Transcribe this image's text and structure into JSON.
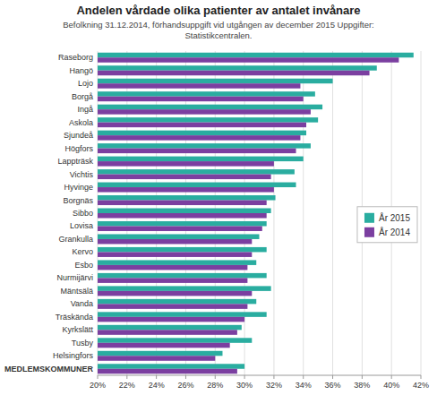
{
  "chart_data": {
    "type": "bar",
    "orientation": "horizontal",
    "title": "Andelen vårdade olika patienter av antalet invånare",
    "subtitle": "Befolkning 31.12.2014, förhandsuppgift vid utgången av december 2015 Uppgifter:\nStatistikcentralen.",
    "categories": [
      "Raseborg",
      "Hangö",
      "Lojo",
      "Borgå",
      "Ingå",
      "Askola",
      "Sjundeå",
      "Högfors",
      "Lappträsk",
      "Vichtis",
      "Hyvinge",
      "Borgnäs",
      "Sibbo",
      "Lovisa",
      "Grankulla",
      "Kervo",
      "Esbo",
      "Nurmijärvi",
      "Mäntsälä",
      "Vanda",
      "Träskända",
      "Kyrkslätt",
      "Tusby",
      "Helsingfors",
      "MEDLEMSKOMMUNER"
    ],
    "series": [
      {
        "name": "År 2015",
        "color": "#2AADA0",
        "values": [
          41.5,
          39.0,
          36.0,
          34.8,
          35.3,
          35.0,
          34.2,
          34.5,
          34.0,
          33.4,
          33.5,
          32.1,
          31.8,
          31.5,
          31.0,
          31.5,
          30.8,
          31.5,
          31.8,
          30.8,
          31.5,
          29.8,
          30.5,
          28.5,
          30.0
        ]
      },
      {
        "name": "År 2014",
        "color": "#7B3FA0",
        "values": [
          40.5,
          38.5,
          33.8,
          34.0,
          34.5,
          34.2,
          33.8,
          33.5,
          32.0,
          31.8,
          32.0,
          31.5,
          31.5,
          31.2,
          30.5,
          30.5,
          30.2,
          30.2,
          30.5,
          30.2,
          30.0,
          29.5,
          29.0,
          28.0,
          29.5
        ]
      }
    ],
    "xlim": [
      20,
      42
    ],
    "xticks": [
      {
        "value": 20,
        "label": "20%"
      },
      {
        "value": 22,
        "label": "22%"
      },
      {
        "value": 24,
        "label": "24%"
      },
      {
        "value": 26,
        "label": "26%"
      },
      {
        "value": 28,
        "label": "28%"
      },
      {
        "value": 30,
        "label": "30%"
      },
      {
        "value": 32,
        "label": "32%"
      },
      {
        "value": 34,
        "label": "34%"
      },
      {
        "value": 36,
        "label": "36%"
      },
      {
        "value": 38,
        "label": "38%"
      },
      {
        "value": 40,
        "label": "40%"
      },
      {
        "value": 42,
        "label": "42%"
      }
    ],
    "grid": true,
    "legend": "right"
  }
}
